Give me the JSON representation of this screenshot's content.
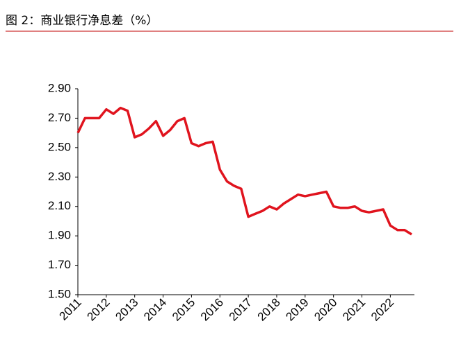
{
  "chart_data": {
    "type": "line",
    "title": "图 2：商业银行净息差（%）",
    "categories": [
      "2011",
      null,
      null,
      null,
      "2012",
      null,
      null,
      null,
      "2013",
      null,
      null,
      null,
      "2014",
      null,
      null,
      null,
      "2015",
      null,
      null,
      null,
      "2016",
      null,
      null,
      null,
      "2017",
      null,
      null,
      null,
      "2018",
      null,
      null,
      null,
      "2019",
      null,
      null,
      null,
      "2020",
      null,
      null,
      null,
      "2021",
      null,
      null,
      null,
      "2022",
      null,
      null,
      null
    ],
    "values": [
      2.6,
      2.7,
      2.7,
      2.7,
      2.76,
      2.73,
      2.77,
      2.75,
      2.57,
      2.59,
      2.63,
      2.68,
      2.58,
      2.62,
      2.68,
      2.7,
      2.53,
      2.51,
      2.53,
      2.54,
      2.35,
      2.27,
      2.24,
      2.22,
      2.03,
      2.05,
      2.07,
      2.1,
      2.08,
      2.12,
      2.15,
      2.18,
      2.17,
      2.18,
      2.19,
      2.2,
      2.1,
      2.09,
      2.09,
      2.1,
      2.07,
      2.06,
      2.07,
      2.08,
      1.97,
      1.94,
      1.94,
      1.91
    ],
    "color": "#e0141e",
    "ylim": [
      1.5,
      2.9
    ],
    "yticks": [
      {
        "value": 1.5,
        "label": "1.50"
      },
      {
        "value": 1.7,
        "label": "1.70"
      },
      {
        "value": 1.9,
        "label": "1.90"
      },
      {
        "value": 2.1,
        "label": "2.10"
      },
      {
        "value": 2.3,
        "label": "2.30"
      },
      {
        "value": 2.5,
        "label": "2.50"
      },
      {
        "value": 2.7,
        "label": "2.70"
      },
      {
        "value": 2.9,
        "label": "2.90"
      }
    ],
    "grid": false
  }
}
